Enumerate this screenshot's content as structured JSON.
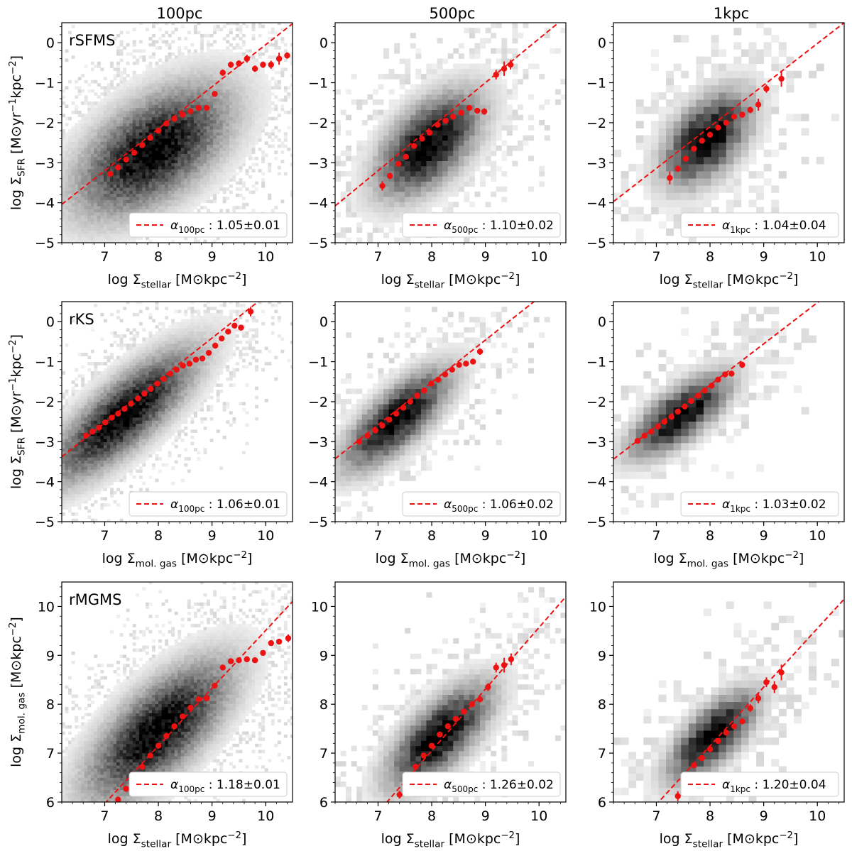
{
  "columns": [
    "100pc",
    "500pc",
    "1kpc"
  ],
  "row_names": [
    "rSFMS",
    "rKS",
    "rMGMS"
  ],
  "colors": {
    "fit": "#ee1111",
    "bins": "#ee1111",
    "density": "#000000",
    "axis": "#000000"
  },
  "chart_data": [
    {
      "type": "scatter",
      "panel": "rSFMS-100pc",
      "row_label": "rSFMS",
      "column": "100pc",
      "xlabel": "log Σstellar [M⊙kpc⁻²]",
      "ylabel": "log ΣSFR [M⊙yr⁻¹kpc⁻²]",
      "xlim": [
        6.2,
        10.5
      ],
      "ylim": [
        -5,
        0.5
      ],
      "xticks": [
        "7",
        "8",
        "9",
        "10"
      ],
      "yticks": [
        "0",
        "−1",
        "−2",
        "−3",
        "−4",
        "−5"
      ],
      "legend": {
        "label": "α100pc :",
        "value": "1.05±0.01",
        "position": "lower-right"
      },
      "fit": {
        "slope": 1.05,
        "x0": 8.0,
        "y0": -2.15
      },
      "density": {
        "cx": 7.9,
        "cy": -2.7,
        "sx": 0.75,
        "sy": 0.85,
        "rho": 0.55,
        "res": 0.06,
        "spread": 1.35
      },
      "bins": {
        "x": [
          7.1,
          7.25,
          7.4,
          7.55,
          7.7,
          7.85,
          8.0,
          8.15,
          8.3,
          8.45,
          8.6,
          8.75,
          8.9,
          9.05,
          9.2,
          9.35,
          9.5,
          9.65,
          9.8,
          9.95,
          10.1,
          10.25,
          10.4
        ],
        "y": [
          -3.28,
          -3.12,
          -2.92,
          -2.75,
          -2.56,
          -2.38,
          -2.2,
          -2.02,
          -1.9,
          -1.8,
          -1.71,
          -1.63,
          -1.63,
          -1.28,
          -0.75,
          -0.55,
          -0.52,
          -0.4,
          -0.65,
          -0.55,
          -0.55,
          -0.4,
          -0.32
        ],
        "err": [
          0.06,
          0.05,
          0.04,
          0.04,
          0.03,
          0.03,
          0.03,
          0.03,
          0.03,
          0.03,
          0.04,
          0.04,
          0.05,
          0.06,
          0.08,
          0.08,
          0.08,
          0.1,
          0.08,
          0.08,
          0.1,
          0.15,
          0.08
        ]
      }
    },
    {
      "type": "scatter",
      "panel": "rSFMS-500pc",
      "row_label": "",
      "column": "500pc",
      "xlabel": "log Σstellar [M⊙kpc⁻²]",
      "ylabel": "",
      "xlim": [
        6.2,
        10.5
      ],
      "ylim": [
        -5,
        0.5
      ],
      "xticks": [
        "7",
        "8",
        "9",
        "10"
      ],
      "yticks": [
        "0",
        "−1",
        "−2",
        "−3",
        "−4",
        "−5"
      ],
      "legend": {
        "label": "α500pc :",
        "value": "1.10±0.02",
        "position": "lower-right"
      },
      "fit": {
        "slope": 1.1,
        "x0": 8.0,
        "y0": -2.1
      },
      "density": {
        "cx": 7.95,
        "cy": -2.55,
        "sx": 0.55,
        "sy": 0.75,
        "rho": 0.55,
        "res": 0.1,
        "spread": 1.15
      },
      "bins": {
        "x": [
          7.08,
          7.22,
          7.38,
          7.52,
          7.67,
          7.82,
          7.96,
          8.11,
          8.26,
          8.4,
          8.55,
          8.7,
          8.85,
          8.98,
          9.2,
          9.35,
          9.47
        ],
        "y": [
          -3.58,
          -3.33,
          -3.03,
          -2.85,
          -2.58,
          -2.4,
          -2.25,
          -2.05,
          -1.95,
          -1.85,
          -1.75,
          -1.63,
          -1.7,
          -1.72,
          -0.8,
          -0.65,
          -0.55
        ],
        "err": [
          0.12,
          0.08,
          0.06,
          0.05,
          0.04,
          0.04,
          0.04,
          0.04,
          0.04,
          0.05,
          0.05,
          0.06,
          0.06,
          0.08,
          0.12,
          0.18,
          0.12
        ]
      }
    },
    {
      "type": "scatter",
      "panel": "rSFMS-1kpc",
      "row_label": "",
      "column": "1kpc",
      "xlabel": "log Σstellar [M⊙kpc⁻²]",
      "ylabel": "",
      "xlim": [
        6.2,
        10.5
      ],
      "ylim": [
        -5,
        0.5
      ],
      "xticks": [
        "7",
        "8",
        "9",
        "10"
      ],
      "yticks": [
        "0",
        "−1",
        "−2",
        "−3",
        "−4",
        "−5"
      ],
      "legend": {
        "label": "α1kpc :",
        "value": "1.04±0.04",
        "position": "lower-right"
      },
      "fit": {
        "slope": 1.04,
        "x0": 8.0,
        "y0": -2.1
      },
      "density": {
        "cx": 7.95,
        "cy": -2.4,
        "sx": 0.5,
        "sy": 0.72,
        "rho": 0.5,
        "res": 0.14,
        "spread": 1.0
      },
      "bins": {
        "x": [
          7.25,
          7.4,
          7.55,
          7.7,
          7.85,
          8.0,
          8.15,
          8.3,
          8.45,
          8.6,
          8.75,
          8.9,
          9.05,
          9.33
        ],
        "y": [
          -3.38,
          -3.15,
          -2.9,
          -2.65,
          -2.45,
          -2.3,
          -2.12,
          -2.0,
          -1.85,
          -1.8,
          -1.68,
          -1.55,
          -1.15,
          -0.9
        ],
        "err": [
          0.16,
          0.08,
          0.06,
          0.05,
          0.05,
          0.04,
          0.04,
          0.05,
          0.05,
          0.06,
          0.08,
          0.15,
          0.1,
          0.2
        ]
      }
    },
    {
      "type": "scatter",
      "panel": "rKS-100pc",
      "row_label": "rKS",
      "column": "100pc",
      "xlabel": "log Σmol. gas [M⊙kpc⁻²]",
      "ylabel": "log ΣSFR [M⊙yr⁻¹kpc⁻²]",
      "xlim": [
        6.2,
        10.5
      ],
      "ylim": [
        -5,
        0.5
      ],
      "xticks": [
        "7",
        "8",
        "9",
        "10"
      ],
      "yticks": [
        "0",
        "−1",
        "−2",
        "−3",
        "−4",
        "−5"
      ],
      "legend": {
        "label": "α100pc :",
        "value": "1.06±0.01",
        "position": "lower-right"
      },
      "fit": {
        "slope": 1.06,
        "x0": 7.5,
        "y0": -2.0
      },
      "density": {
        "cx": 7.35,
        "cy": -2.35,
        "sx": 0.7,
        "sy": 0.85,
        "rho": 0.8,
        "res": 0.06,
        "spread": 1.4
      },
      "bins": {
        "x": [
          6.65,
          6.77,
          6.89,
          7.01,
          7.13,
          7.25,
          7.37,
          7.49,
          7.62,
          7.74,
          7.86,
          7.98,
          8.1,
          8.22,
          8.34,
          8.46,
          8.58,
          8.7,
          8.82,
          8.94,
          9.06,
          9.18,
          9.3,
          9.42,
          9.54,
          9.72
        ],
        "y": [
          -2.85,
          -2.75,
          -2.65,
          -2.52,
          -2.4,
          -2.3,
          -2.18,
          -2.05,
          -1.92,
          -1.8,
          -1.68,
          -1.55,
          -1.43,
          -1.3,
          -1.2,
          -1.1,
          -1.05,
          -0.95,
          -0.92,
          -0.78,
          -0.6,
          -0.42,
          -0.25,
          -0.1,
          -0.15,
          0.25
        ],
        "err": [
          0.03,
          0.03,
          0.03,
          0.03,
          0.03,
          0.03,
          0.03,
          0.03,
          0.03,
          0.03,
          0.03,
          0.03,
          0.03,
          0.03,
          0.03,
          0.03,
          0.03,
          0.03,
          0.03,
          0.04,
          0.04,
          0.05,
          0.05,
          0.06,
          0.06,
          0.12
        ]
      }
    },
    {
      "type": "scatter",
      "panel": "rKS-500pc",
      "row_label": "",
      "column": "500pc",
      "xlabel": "log Σmol. gas [M⊙kpc⁻²]",
      "ylabel": "",
      "xlim": [
        6.2,
        10.5
      ],
      "ylim": [
        -5,
        0.5
      ],
      "xticks": [
        "7",
        "8",
        "9",
        "10"
      ],
      "yticks": [
        "0",
        "−1",
        "−2",
        "−3",
        "−4",
        "−5"
      ],
      "legend": {
        "label": "α500pc :",
        "value": "1.06±0.02",
        "position": "lower-right"
      },
      "fit": {
        "slope": 1.06,
        "x0": 7.5,
        "y0": -2.05
      },
      "density": {
        "cx": 7.35,
        "cy": -2.45,
        "sx": 0.55,
        "sy": 0.7,
        "rho": 0.75,
        "res": 0.1,
        "spread": 1.2
      },
      "bins": {
        "x": [
          6.65,
          6.8,
          6.95,
          7.08,
          7.21,
          7.34,
          7.47,
          7.6,
          7.73,
          7.86,
          7.99,
          8.12,
          8.25,
          8.38,
          8.51,
          8.64,
          8.77,
          8.9
        ],
        "y": [
          -3.0,
          -2.85,
          -2.72,
          -2.6,
          -2.45,
          -2.3,
          -2.15,
          -2.0,
          -1.85,
          -1.72,
          -1.55,
          -1.45,
          -1.32,
          -1.2,
          -1.08,
          -1.05,
          -1.0,
          -0.75
        ],
        "err": [
          0.05,
          0.04,
          0.04,
          0.04,
          0.04,
          0.04,
          0.04,
          0.04,
          0.04,
          0.04,
          0.04,
          0.04,
          0.04,
          0.05,
          0.05,
          0.06,
          0.06,
          0.08
        ]
      }
    },
    {
      "type": "scatter",
      "panel": "rKS-1kpc",
      "row_label": "",
      "column": "1kpc",
      "xlabel": "log Σmol. gas [M⊙kpc⁻²]",
      "ylabel": "",
      "xlim": [
        6.2,
        10.5
      ],
      "ylim": [
        -5,
        0.5
      ],
      "xticks": [
        "7",
        "8",
        "9",
        "10"
      ],
      "yticks": [
        "0",
        "−1",
        "−2",
        "−3",
        "−4",
        "−5"
      ],
      "legend": {
        "label": "α1kpc :",
        "value": "1.03±0.02",
        "position": "lower-right"
      },
      "fit": {
        "slope": 1.03,
        "x0": 7.5,
        "y0": -2.1
      },
      "density": {
        "cx": 7.45,
        "cy": -2.35,
        "sx": 0.55,
        "sy": 0.62,
        "rho": 0.72,
        "res": 0.14,
        "spread": 1.05
      },
      "bins": {
        "x": [
          6.65,
          6.78,
          6.9,
          7.03,
          7.15,
          7.28,
          7.4,
          7.53,
          7.65,
          7.78,
          7.9,
          8.03,
          8.15,
          8.28,
          8.4,
          8.6
        ],
        "y": [
          -2.98,
          -2.85,
          -2.75,
          -2.62,
          -2.5,
          -2.38,
          -2.25,
          -2.12,
          -1.98,
          -1.85,
          -1.72,
          -1.6,
          -1.45,
          -1.32,
          -1.3,
          -1.08
        ],
        "err": [
          0.05,
          0.05,
          0.05,
          0.05,
          0.05,
          0.05,
          0.05,
          0.05,
          0.05,
          0.05,
          0.05,
          0.06,
          0.06,
          0.06,
          0.07,
          0.08
        ]
      }
    },
    {
      "type": "scatter",
      "panel": "rMGMS-100pc",
      "row_label": "rMGMS",
      "column": "100pc",
      "xlabel": "log Σstellar [M⊙kpc⁻²]",
      "ylabel": "log Σmol. gas [M⊙kpc⁻²]",
      "xlim": [
        6.2,
        10.5
      ],
      "ylim": [
        6,
        10.5
      ],
      "xticks": [
        "7",
        "8",
        "9",
        "10"
      ],
      "yticks": [
        "6",
        "7",
        "8",
        "9",
        "10"
      ],
      "legend": {
        "label": "α100pc :",
        "value": "1.18±0.01",
        "position": "lower-right"
      },
      "fit": {
        "slope": 1.18,
        "x0": 8.0,
        "y0": 7.15
      },
      "density": {
        "cx": 8.0,
        "cy": 7.45,
        "sx": 0.7,
        "sy": 0.75,
        "rho": 0.7,
        "res": 0.06,
        "spread": 1.35
      },
      "bins": {
        "x": [
          7.25,
          7.4,
          7.55,
          7.7,
          7.85,
          8.0,
          8.15,
          8.3,
          8.45,
          8.6,
          8.75,
          8.9,
          9.05,
          9.2,
          9.35,
          9.5,
          9.65,
          9.8,
          9.95,
          10.1,
          10.25,
          10.42
        ],
        "y": [
          6.05,
          6.27,
          6.5,
          6.72,
          6.95,
          7.15,
          7.35,
          7.55,
          7.75,
          7.93,
          8.1,
          8.12,
          8.38,
          8.75,
          8.88,
          8.9,
          8.92,
          8.9,
          9.05,
          9.25,
          9.28,
          9.35
        ],
        "err": [
          0.05,
          0.04,
          0.04,
          0.03,
          0.03,
          0.03,
          0.03,
          0.03,
          0.03,
          0.03,
          0.03,
          0.04,
          0.04,
          0.05,
          0.05,
          0.05,
          0.06,
          0.05,
          0.05,
          0.05,
          0.06,
          0.08
        ]
      }
    },
    {
      "type": "scatter",
      "panel": "rMGMS-500pc",
      "row_label": "",
      "column": "500pc",
      "xlabel": "log Σstellar [M⊙kpc⁻²]",
      "ylabel": "",
      "xlim": [
        6.2,
        10.5
      ],
      "ylim": [
        6,
        10.5
      ],
      "xticks": [
        "7",
        "8",
        "9",
        "10"
      ],
      "yticks": [
        "6",
        "7",
        "8",
        "9",
        "10"
      ],
      "legend": {
        "label": "α500pc :",
        "value": "1.26±0.02",
        "position": "lower-right"
      },
      "fit": {
        "slope": 1.26,
        "x0": 8.0,
        "y0": 7.05
      },
      "density": {
        "cx": 8.15,
        "cy": 7.35,
        "sx": 0.55,
        "sy": 0.6,
        "rho": 0.7,
        "res": 0.1,
        "spread": 1.15
      },
      "bins": {
        "x": [
          7.4,
          7.55,
          7.7,
          7.85,
          8.0,
          8.15,
          8.3,
          8.45,
          8.6,
          8.75,
          8.9,
          9.05,
          9.2,
          9.35,
          9.48
        ],
        "y": [
          6.15,
          6.5,
          6.72,
          6.95,
          7.15,
          7.38,
          7.55,
          7.7,
          7.85,
          8.0,
          8.1,
          8.35,
          8.75,
          8.8,
          8.92
        ],
        "err": [
          0.08,
          0.06,
          0.05,
          0.04,
          0.04,
          0.04,
          0.04,
          0.04,
          0.04,
          0.05,
          0.06,
          0.08,
          0.1,
          0.15,
          0.12
        ]
      }
    },
    {
      "type": "scatter",
      "panel": "rMGMS-1kpc",
      "row_label": "",
      "column": "1kpc",
      "xlabel": "log Σstellar [M⊙kpc⁻²]",
      "ylabel": "",
      "xlim": [
        6.2,
        10.5
      ],
      "ylim": [
        6,
        10.5
      ],
      "xticks": [
        "7",
        "8",
        "9",
        "10"
      ],
      "yticks": [
        "6",
        "7",
        "8",
        "9",
        "10"
      ],
      "legend": {
        "label": "α1kpc :",
        "value": "1.20±0.04",
        "position": "lower-right"
      },
      "fit": {
        "slope": 1.2,
        "x0": 8.0,
        "y0": 7.15
      },
      "density": {
        "cx": 8.05,
        "cy": 7.35,
        "sx": 0.5,
        "sy": 0.55,
        "rho": 0.7,
        "res": 0.14,
        "spread": 1.0
      },
      "bins": {
        "x": [
          7.4,
          7.55,
          7.7,
          7.85,
          8.0,
          8.15,
          8.3,
          8.45,
          8.6,
          8.75,
          8.9,
          9.05,
          9.2,
          9.33
        ],
        "y": [
          6.12,
          6.42,
          6.75,
          6.9,
          7.08,
          7.25,
          7.42,
          7.55,
          7.65,
          7.92,
          8.12,
          8.45,
          8.35,
          8.65
        ],
        "err": [
          0.1,
          0.06,
          0.05,
          0.05,
          0.05,
          0.05,
          0.05,
          0.05,
          0.06,
          0.08,
          0.1,
          0.1,
          0.12,
          0.16
        ]
      }
    }
  ]
}
